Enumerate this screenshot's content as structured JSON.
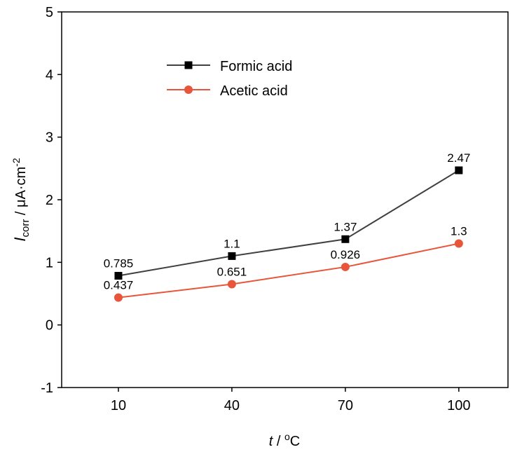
{
  "chart_data": {
    "type": "line",
    "x_label": {
      "symbol": "t",
      "separator": " / ",
      "superscript": "o",
      "unit": "C"
    },
    "y_label": {
      "symbol": "I",
      "subscript": "corr",
      "unit": " / μA·cm",
      "superscript": "-2"
    },
    "x": [
      10,
      40,
      70,
      100
    ],
    "series": [
      {
        "name": "Formic acid",
        "color": "#404040",
        "marker_color": "#000000",
        "marker": "square",
        "values": [
          0.785,
          1.1,
          1.37,
          2.47
        ]
      },
      {
        "name": "Acetic acid",
        "color": "#e8553a",
        "marker_color": "#e8553a",
        "marker": "circle",
        "values": [
          0.437,
          0.651,
          0.926,
          1.3
        ]
      }
    ],
    "xlim": [
      -5,
      113
    ],
    "xticks": [
      10,
      40,
      70,
      100
    ],
    "ylim": [
      -1,
      5
    ],
    "yticks": [
      -1,
      0,
      1,
      2,
      3,
      4,
      5
    ],
    "grid": false,
    "legend": "upper-left"
  }
}
